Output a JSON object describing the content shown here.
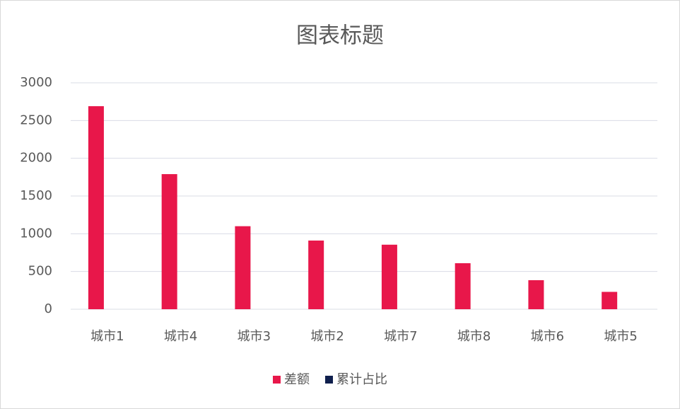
{
  "chart_data": {
    "type": "bar",
    "title": "图表标题",
    "categories": [
      "城市1",
      "城市4",
      "城市3",
      "城市2",
      "城市7",
      "城市8",
      "城市6",
      "城市5"
    ],
    "series": [
      {
        "name": "差额",
        "color": "#e8174a",
        "values": [
          2690,
          1790,
          1100,
          910,
          855,
          610,
          385,
          230
        ]
      },
      {
        "name": "累计占比",
        "color": "#0f1f4d",
        "values": [
          null,
          null,
          null,
          null,
          null,
          null,
          null,
          null
        ]
      }
    ],
    "ylim": [
      0,
      3000
    ],
    "yticks": [
      0,
      500,
      1000,
      1500,
      2000,
      2500,
      3000
    ],
    "grid": true,
    "legend": "bottom"
  }
}
